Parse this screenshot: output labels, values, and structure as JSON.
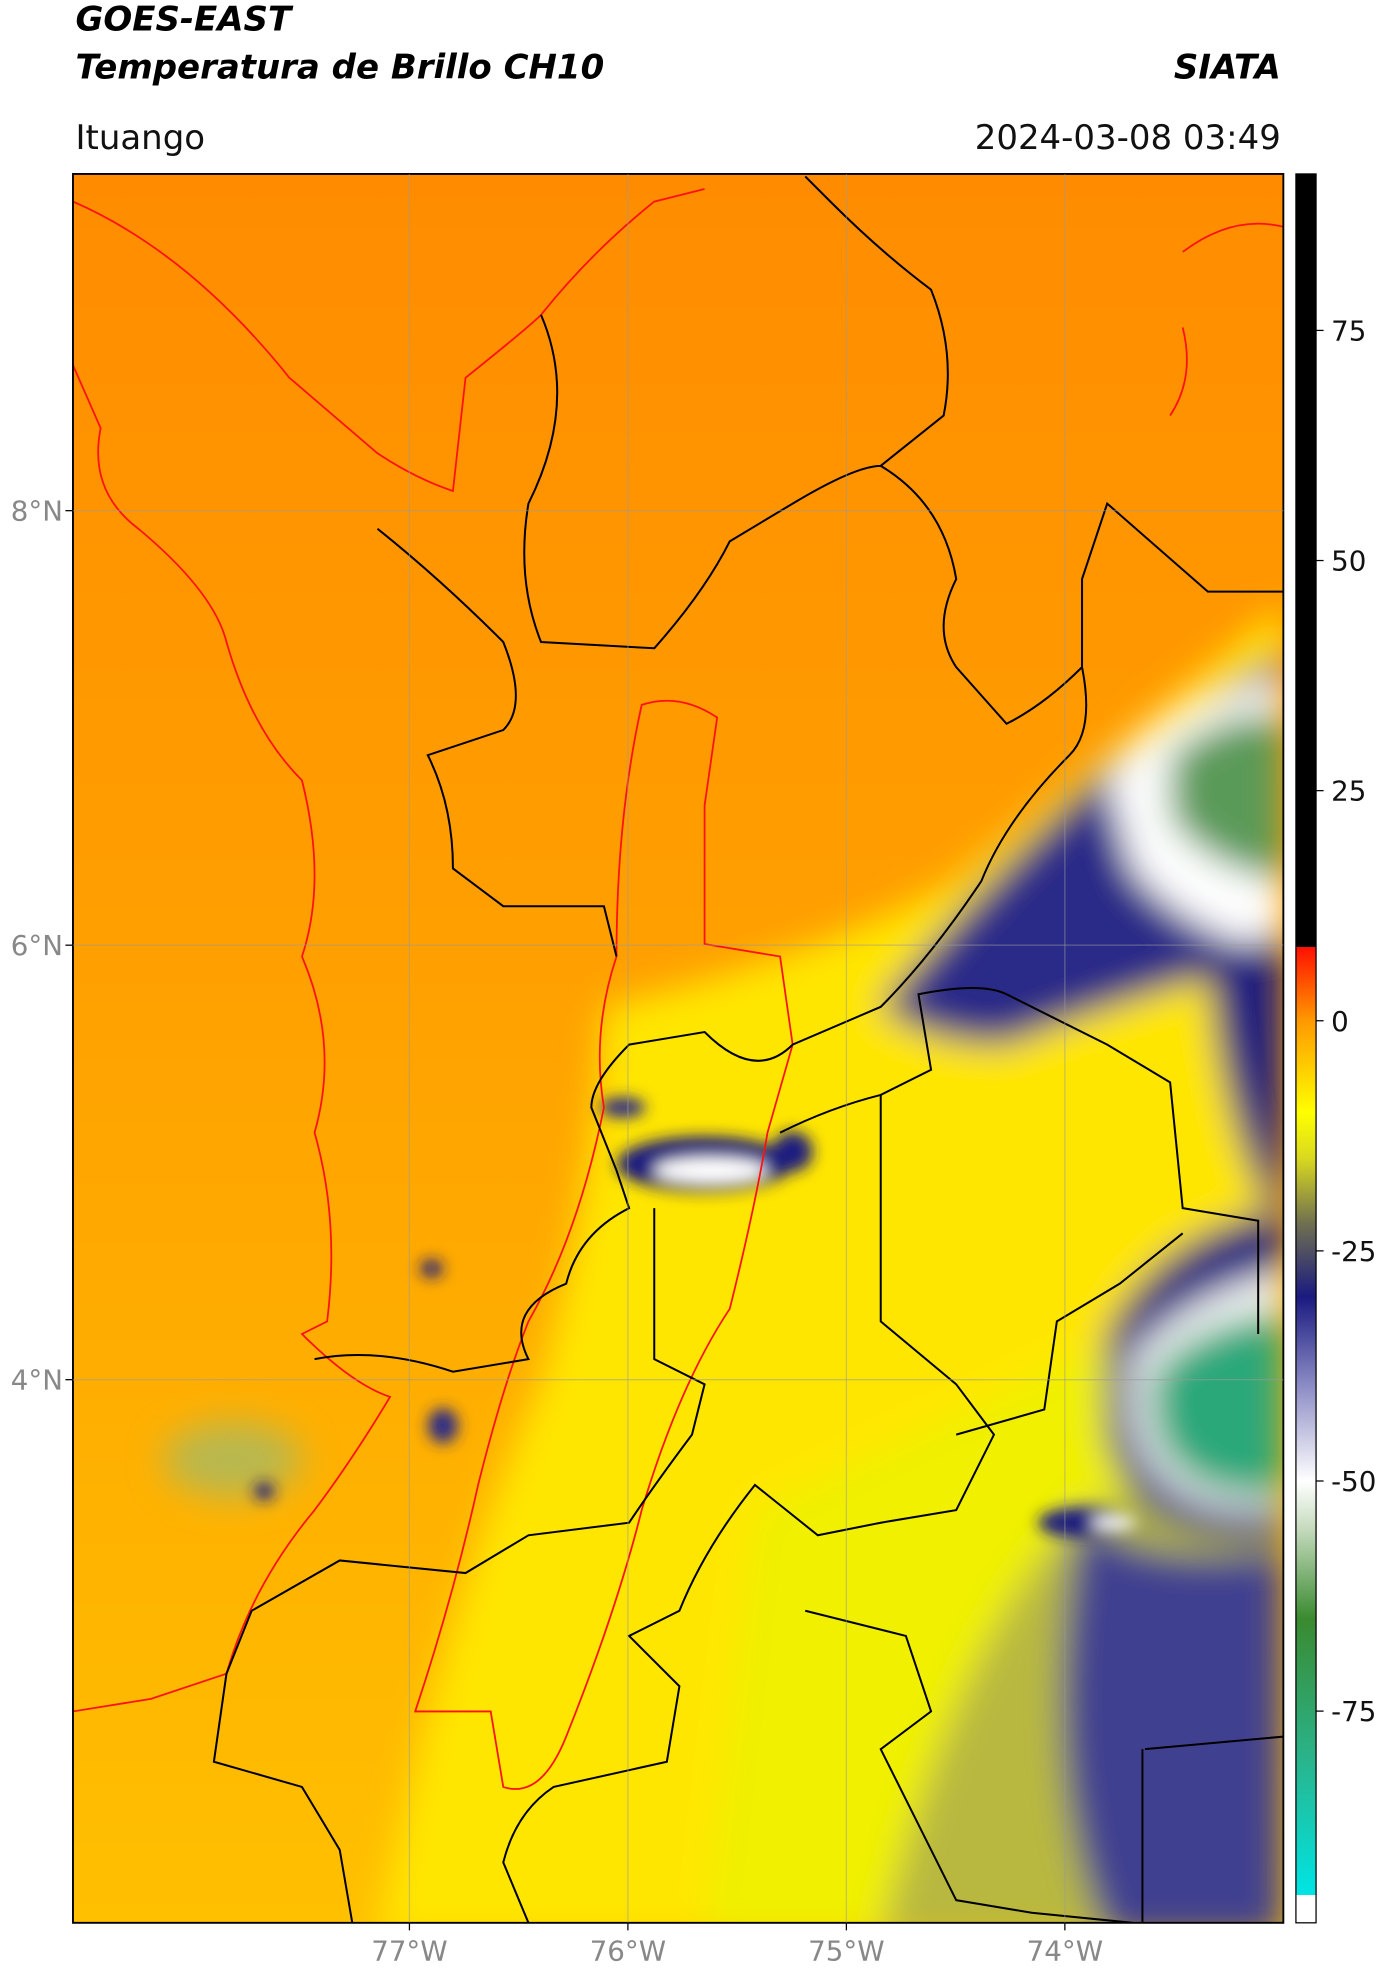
{
  "header": {
    "satellite": "GOES-EAST",
    "product": "Temperatura de Brillo CH10",
    "source": "SIATA",
    "region": "Ituango",
    "timestamp": "2024-03-08 03:49"
  },
  "map": {
    "xlim": [
      -78.54,
      -73.0
    ],
    "ylim": [
      1.5,
      9.55
    ],
    "xticks": [
      {
        "value": -77,
        "label": "77°W"
      },
      {
        "value": -76,
        "label": "76°W"
      },
      {
        "value": -75,
        "label": "75°W"
      },
      {
        "value": -74,
        "label": "74°W"
      }
    ],
    "yticks": [
      {
        "value": 8,
        "label": "8°N"
      },
      {
        "value": 6,
        "label": "6°N"
      },
      {
        "value": 4,
        "label": "4°N"
      }
    ],
    "grid": true
  },
  "colorbar": {
    "clim": [
      -98,
      92
    ],
    "ticks": [
      75,
      50,
      25,
      0,
      -25,
      -50,
      -75
    ],
    "stops": [
      {
        "value": -98,
        "color": "#ffffff"
      },
      {
        "value": -95,
        "color": "#ffffff"
      },
      {
        "value": -95,
        "color": "#00e5e5"
      },
      {
        "value": -80,
        "color": "#2ab38a"
      },
      {
        "value": -65,
        "color": "#3a8a30"
      },
      {
        "value": -55,
        "color": "#c8dcc0"
      },
      {
        "value": -50,
        "color": "#ffffff"
      },
      {
        "value": -40,
        "color": "#9090c8"
      },
      {
        "value": -30,
        "color": "#1a1a80"
      },
      {
        "value": -22,
        "color": "#707050"
      },
      {
        "value": -15,
        "color": "#d8d820"
      },
      {
        "value": -10,
        "color": "#ffff00"
      },
      {
        "value": 0,
        "color": "#ff9900"
      },
      {
        "value": 8,
        "color": "#ff1000"
      },
      {
        "value": 8,
        "color": "#000000"
      },
      {
        "value": 92,
        "color": "#000000"
      }
    ]
  }
}
